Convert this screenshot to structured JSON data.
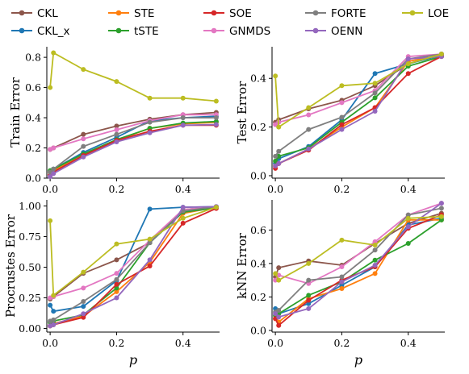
{
  "chart_data": [
    {
      "type": "line",
      "ylabel": "Train Error",
      "xlabel": "",
      "xlim": [
        -0.01,
        0.51
      ],
      "ylim": [
        0.0,
        0.87
      ],
      "yticks": [
        "0.0",
        "0.2",
        "0.4",
        "0.6",
        "0.8"
      ],
      "ytick_values": [
        0.0,
        0.2,
        0.4,
        0.6,
        0.8
      ],
      "xticks": [
        "0.0",
        "0.2",
        "0.4"
      ],
      "xtick_values": [
        0.0,
        0.2,
        0.4
      ],
      "x": [
        0.0,
        0.01,
        0.1,
        0.2,
        0.3,
        0.4,
        0.5
      ],
      "series": [
        {
          "name": "CKL",
          "values": [
            0.19,
            0.2,
            0.29,
            0.345,
            0.39,
            0.42,
            0.435
          ]
        },
        {
          "name": "CKL_x",
          "values": [
            0.04,
            0.06,
            0.17,
            0.27,
            0.38,
            0.4,
            0.41
          ]
        },
        {
          "name": "STE",
          "values": [
            0.04,
            0.05,
            0.15,
            0.25,
            0.33,
            0.36,
            0.37
          ]
        },
        {
          "name": "tSTE",
          "values": [
            0.05,
            0.06,
            0.16,
            0.255,
            0.33,
            0.365,
            0.375
          ]
        },
        {
          "name": "SOE",
          "values": [
            0.02,
            0.04,
            0.15,
            0.25,
            0.31,
            0.35,
            0.35
          ]
        },
        {
          "name": "GNMDS",
          "values": [
            0.19,
            0.2,
            0.26,
            0.32,
            0.38,
            0.42,
            0.42
          ]
        },
        {
          "name": "FORTE",
          "values": [
            0.04,
            0.06,
            0.21,
            0.29,
            0.37,
            0.4,
            0.4
          ]
        },
        {
          "name": "OENN",
          "values": [
            0.01,
            0.03,
            0.14,
            0.24,
            0.3,
            0.35,
            0.355
          ]
        },
        {
          "name": "LOE",
          "values": [
            0.6,
            0.83,
            0.72,
            0.64,
            0.53,
            0.53,
            0.51
          ]
        }
      ]
    },
    {
      "type": "line",
      "ylabel": "Test Error",
      "xlabel": "",
      "xlim": [
        -0.01,
        0.51
      ],
      "ylim": [
        -0.01,
        0.53
      ],
      "yticks": [
        "0.0",
        "0.2",
        "0.4"
      ],
      "ytick_values": [
        0.0,
        0.2,
        0.4
      ],
      "xticks": [
        "0.0",
        "0.2",
        "0.4"
      ],
      "xtick_values": [
        0.0,
        0.2,
        0.4
      ],
      "x": [
        0.0,
        0.01,
        0.1,
        0.2,
        0.3,
        0.4,
        0.5
      ],
      "series": [
        {
          "name": "CKL",
          "values": [
            0.22,
            0.23,
            0.275,
            0.31,
            0.37,
            0.46,
            0.5
          ]
        },
        {
          "name": "CKL_x",
          "values": [
            0.05,
            0.07,
            0.12,
            0.23,
            0.42,
            0.46,
            0.495
          ]
        },
        {
          "name": "STE",
          "values": [
            0.04,
            0.05,
            0.11,
            0.2,
            0.28,
            0.47,
            0.495
          ]
        },
        {
          "name": "tSTE",
          "values": [
            0.06,
            0.08,
            0.115,
            0.22,
            0.32,
            0.45,
            0.49
          ]
        },
        {
          "name": "SOE",
          "values": [
            0.03,
            0.05,
            0.105,
            0.21,
            0.28,
            0.42,
            0.49
          ]
        },
        {
          "name": "GNMDS",
          "values": [
            0.21,
            0.22,
            0.25,
            0.3,
            0.35,
            0.49,
            0.5
          ]
        },
        {
          "name": "FORTE",
          "values": [
            0.08,
            0.1,
            0.19,
            0.24,
            0.34,
            0.48,
            0.5
          ]
        },
        {
          "name": "OENN",
          "values": [
            0.04,
            0.05,
            0.11,
            0.19,
            0.265,
            0.48,
            0.49
          ]
        },
        {
          "name": "LOE",
          "values": [
            0.41,
            0.2,
            0.28,
            0.37,
            0.38,
            0.46,
            0.5
          ]
        }
      ]
    },
    {
      "type": "line",
      "ylabel": "Procrustes Error",
      "xlabel": "p",
      "xlim": [
        -0.01,
        0.51
      ],
      "ylim": [
        -0.03,
        1.05
      ],
      "yticks": [
        "0.00",
        "0.25",
        "0.50",
        "0.75",
        "1.00"
      ],
      "ytick_values": [
        0.0,
        0.25,
        0.5,
        0.75,
        1.0
      ],
      "xticks": [
        "0.0",
        "0.2",
        "0.4"
      ],
      "xtick_values": [
        0.0,
        0.2,
        0.4
      ],
      "x": [
        0.0,
        0.01,
        0.1,
        0.2,
        0.3,
        0.4,
        0.5
      ],
      "series": [
        {
          "name": "CKL",
          "values": [
            0.24,
            0.26,
            0.45,
            0.56,
            0.7,
            0.97,
            0.995
          ]
        },
        {
          "name": "CKL_x",
          "values": [
            0.19,
            0.14,
            0.18,
            0.39,
            0.975,
            0.99,
            0.995
          ]
        },
        {
          "name": "STE",
          "values": [
            0.02,
            0.04,
            0.1,
            0.3,
            0.54,
            0.94,
            0.99
          ]
        },
        {
          "name": "tSTE",
          "values": [
            0.05,
            0.06,
            0.11,
            0.33,
            0.7,
            0.95,
            0.985
          ]
        },
        {
          "name": "SOE",
          "values": [
            0.02,
            0.03,
            0.09,
            0.36,
            0.51,
            0.86,
            0.98
          ]
        },
        {
          "name": "GNMDS",
          "values": [
            0.25,
            0.26,
            0.33,
            0.45,
            0.72,
            0.97,
            0.995
          ]
        },
        {
          "name": "FORTE",
          "values": [
            0.06,
            0.07,
            0.22,
            0.4,
            0.7,
            0.96,
            0.995
          ]
        },
        {
          "name": "OENN",
          "values": [
            0.02,
            0.03,
            0.12,
            0.25,
            0.56,
            0.99,
            0.995
          ]
        },
        {
          "name": "LOE",
          "values": [
            0.88,
            0.27,
            0.46,
            0.69,
            0.73,
            0.9,
            0.99
          ]
        }
      ]
    },
    {
      "type": "line",
      "ylabel": "kNN Error",
      "xlabel": "p",
      "xlim": [
        -0.01,
        0.51
      ],
      "ylim": [
        -0.01,
        0.78
      ],
      "yticks": [
        "0.0",
        "0.2",
        "0.4",
        "0.6"
      ],
      "ytick_values": [
        0.0,
        0.2,
        0.4,
        0.6
      ],
      "xticks": [
        "0.0",
        "0.2",
        "0.4"
      ],
      "xtick_values": [
        0.0,
        0.2,
        0.4
      ],
      "x": [
        0.0,
        0.01,
        0.1,
        0.2,
        0.3,
        0.4,
        0.5
      ],
      "series": [
        {
          "name": "CKL",
          "values": [
            0.32,
            0.375,
            0.415,
            0.39,
            0.52,
            0.64,
            0.7
          ]
        },
        {
          "name": "CKL_x",
          "values": [
            0.13,
            0.1,
            0.16,
            0.27,
            0.38,
            0.63,
            0.67
          ]
        },
        {
          "name": "STE",
          "values": [
            0.07,
            0.05,
            0.19,
            0.25,
            0.34,
            0.66,
            0.66
          ]
        },
        {
          "name": "tSTE",
          "values": [
            0.09,
            0.1,
            0.21,
            0.29,
            0.42,
            0.52,
            0.66
          ]
        },
        {
          "name": "SOE",
          "values": [
            0.07,
            0.03,
            0.18,
            0.3,
            0.38,
            0.61,
            0.69
          ]
        },
        {
          "name": "GNMDS",
          "values": [
            0.3,
            0.33,
            0.28,
            0.38,
            0.53,
            0.69,
            0.76
          ]
        },
        {
          "name": "FORTE",
          "values": [
            0.11,
            0.12,
            0.3,
            0.32,
            0.48,
            0.69,
            0.73
          ]
        },
        {
          "name": "OENN",
          "values": [
            0.1,
            0.08,
            0.13,
            0.29,
            0.39,
            0.62,
            0.76
          ]
        },
        {
          "name": "LOE",
          "values": [
            0.34,
            0.3,
            0.4,
            0.54,
            0.51,
            0.67,
            0.68
          ]
        }
      ]
    }
  ],
  "legend": {
    "placement": "top",
    "items": [
      {
        "name": "CKL",
        "color": "#8c564b"
      },
      {
        "name": "CKL_x",
        "color": "#1f77b4"
      },
      {
        "name": "STE",
        "color": "#ff7f0e"
      },
      {
        "name": "tSTE",
        "color": "#2ca02c"
      },
      {
        "name": "SOE",
        "color": "#d62728"
      },
      {
        "name": "GNMDS",
        "color": "#e377c2"
      },
      {
        "name": "FORTE",
        "color": "#7f7f7f"
      },
      {
        "name": "OENN",
        "color": "#9467bd"
      },
      {
        "name": "LOE",
        "color": "#bcbd22"
      }
    ]
  }
}
